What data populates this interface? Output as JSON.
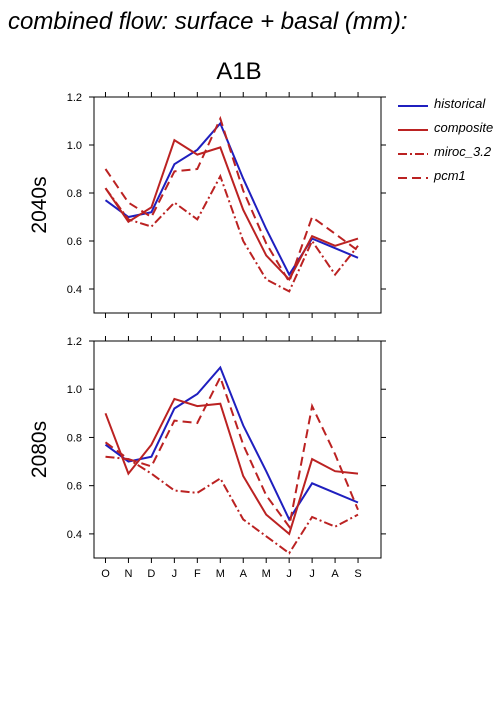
{
  "title": "combined flow: surface + basal (mm):",
  "scenario": "A1B",
  "legend": [
    {
      "label": "historical",
      "color": "#1f1fbf",
      "dash": "solid"
    },
    {
      "label": "composite",
      "color": "#bb2222",
      "dash": "solid"
    },
    {
      "label": "miroc_3.2",
      "color": "#bb2222",
      "dash": "dashdot"
    },
    {
      "label": "pcm1",
      "color": "#bb2222",
      "dash": "dashed"
    }
  ],
  "chart_data": [
    {
      "type": "line",
      "ylabel": "2040s",
      "categories": [
        "O",
        "N",
        "D",
        "J",
        "F",
        "M",
        "A",
        "M",
        "J",
        "J",
        "A",
        "S"
      ],
      "ylim": [
        0.3,
        1.2
      ],
      "yticks": [
        "0.4",
        "0.6",
        "0.8",
        "1.0",
        "1.2"
      ],
      "series": [
        {
          "name": "historical",
          "values": [
            0.77,
            0.7,
            0.72,
            0.92,
            0.98,
            1.09,
            0.86,
            0.65,
            0.46,
            0.61,
            0.57,
            0.53
          ]
        },
        {
          "name": "composite",
          "values": [
            0.82,
            0.68,
            0.74,
            1.02,
            0.96,
            0.99,
            0.73,
            0.54,
            0.44,
            0.62,
            0.58,
            0.61
          ]
        },
        {
          "name": "miroc_3.2",
          "values": [
            0.82,
            0.69,
            0.66,
            0.76,
            0.69,
            0.87,
            0.6,
            0.44,
            0.39,
            0.6,
            0.46,
            0.58
          ]
        },
        {
          "name": "pcm1",
          "values": [
            0.9,
            0.76,
            0.7,
            0.89,
            0.9,
            1.11,
            0.81,
            0.59,
            0.43,
            0.7,
            0.63,
            0.56
          ]
        }
      ]
    },
    {
      "type": "line",
      "ylabel": "2080s",
      "categories": [
        "O",
        "N",
        "D",
        "J",
        "F",
        "M",
        "A",
        "M",
        "J",
        "J",
        "A",
        "S"
      ],
      "ylim": [
        0.3,
        1.2
      ],
      "yticks": [
        "0.4",
        "0.6",
        "0.8",
        "1.0",
        "1.2"
      ],
      "series": [
        {
          "name": "historical",
          "values": [
            0.77,
            0.7,
            0.72,
            0.92,
            0.98,
            1.09,
            0.85,
            0.66,
            0.46,
            0.61,
            0.57,
            0.53
          ]
        },
        {
          "name": "composite",
          "values": [
            0.9,
            0.65,
            0.77,
            0.96,
            0.93,
            0.94,
            0.64,
            0.48,
            0.4,
            0.71,
            0.66,
            0.65
          ]
        },
        {
          "name": "miroc_3.2",
          "values": [
            0.72,
            0.71,
            0.65,
            0.58,
            0.57,
            0.63,
            0.46,
            0.39,
            0.32,
            0.47,
            0.43,
            0.48
          ]
        },
        {
          "name": "pcm1",
          "values": [
            0.78,
            0.71,
            0.68,
            0.87,
            0.86,
            1.05,
            0.77,
            0.56,
            0.43,
            0.93,
            0.73,
            0.5
          ]
        }
      ]
    }
  ]
}
